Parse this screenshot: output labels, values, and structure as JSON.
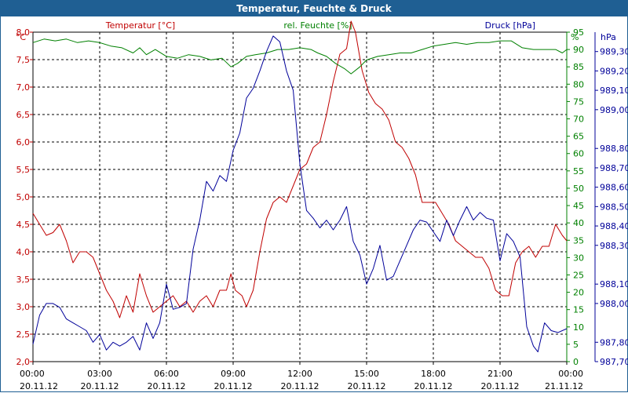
{
  "window_title": "Temperatur, Feuchte & Druck",
  "chart_data": {
    "type": "line",
    "title": "Temperatur, Feuchte & Druck",
    "x_tick_times": [
      "00:00",
      "03:00",
      "06:00",
      "09:00",
      "12:00",
      "15:00",
      "18:00",
      "21:00",
      "00:00"
    ],
    "x_tick_dates": [
      "20.11.12",
      "20.11.12",
      "20.11.12",
      "20.11.12",
      "20.11.12",
      "20.11.12",
      "20.11.12",
      "20.11.12",
      "21.11.12"
    ],
    "xlim_hours": [
      0,
      24
    ],
    "grid": true,
    "axes": {
      "temperature": {
        "label": "Temperatur [°C]",
        "unit": "°C",
        "ylim": [
          2.0,
          8.0
        ],
        "ticks": [
          "2,0",
          "2,5",
          "3,0",
          "3,5",
          "4,0",
          "4,5",
          "5,0",
          "5,5",
          "6,0",
          "6,5",
          "7,0",
          "7,5",
          "8,0"
        ]
      },
      "humidity": {
        "label": "rel. Feuchte [%]",
        "unit": "%",
        "ylim": [
          0,
          95
        ],
        "ticks": [
          "0",
          "5",
          "10",
          "15",
          "20",
          "25",
          "30",
          "35",
          "40",
          "45",
          "50",
          "55",
          "60",
          "65",
          "70",
          "75",
          "80",
          "85",
          "90",
          "95"
        ]
      },
      "pressure": {
        "label": "Druck [hPa]",
        "unit": "hPa",
        "ylim": [
          987.7,
          989.4
        ],
        "ticks": [
          "987,70",
          "987,80",
          "988,00",
          "988,10",
          "988,30",
          "988,40",
          "988,50",
          "988,60",
          "988,70",
          "988,80",
          "989,00",
          "989,10",
          "989,20",
          "989,30"
        ]
      }
    },
    "series": [
      {
        "name": "Temperatur",
        "axis": "temperature",
        "color": "#c00000",
        "points": [
          [
            0,
            4.7
          ],
          [
            0.3,
            4.5
          ],
          [
            0.6,
            4.3
          ],
          [
            0.9,
            4.35
          ],
          [
            1.2,
            4.5
          ],
          [
            1.5,
            4.2
          ],
          [
            1.8,
            3.8
          ],
          [
            2.1,
            4.0
          ],
          [
            2.4,
            4.0
          ],
          [
            2.7,
            3.9
          ],
          [
            3.0,
            3.6
          ],
          [
            3.3,
            3.3
          ],
          [
            3.6,
            3.1
          ],
          [
            3.9,
            2.8
          ],
          [
            4.2,
            3.2
          ],
          [
            4.5,
            2.9
          ],
          [
            4.8,
            3.6
          ],
          [
            5.1,
            3.2
          ],
          [
            5.4,
            2.9
          ],
          [
            5.7,
            3.0
          ],
          [
            6.0,
            3.1
          ],
          [
            6.3,
            3.2
          ],
          [
            6.6,
            3.0
          ],
          [
            6.9,
            3.1
          ],
          [
            7.2,
            2.9
          ],
          [
            7.5,
            3.1
          ],
          [
            7.8,
            3.2
          ],
          [
            8.1,
            3.0
          ],
          [
            8.4,
            3.3
          ],
          [
            8.7,
            3.3
          ],
          [
            8.9,
            3.6
          ],
          [
            9.1,
            3.3
          ],
          [
            9.4,
            3.2
          ],
          [
            9.6,
            3.0
          ],
          [
            9.9,
            3.3
          ],
          [
            10.2,
            4.0
          ],
          [
            10.5,
            4.6
          ],
          [
            10.8,
            4.9
          ],
          [
            11.1,
            5.0
          ],
          [
            11.4,
            4.9
          ],
          [
            11.7,
            5.2
          ],
          [
            12.0,
            5.5
          ],
          [
            12.3,
            5.6
          ],
          [
            12.6,
            5.9
          ],
          [
            12.9,
            6.0
          ],
          [
            13.2,
            6.5
          ],
          [
            13.5,
            7.1
          ],
          [
            13.8,
            7.6
          ],
          [
            14.1,
            7.7
          ],
          [
            14.3,
            8.2
          ],
          [
            14.5,
            8.0
          ],
          [
            14.8,
            7.3
          ],
          [
            15.1,
            6.9
          ],
          [
            15.4,
            6.7
          ],
          [
            15.7,
            6.6
          ],
          [
            16.0,
            6.4
          ],
          [
            16.3,
            6.0
          ],
          [
            16.6,
            5.9
          ],
          [
            16.9,
            5.7
          ],
          [
            17.2,
            5.4
          ],
          [
            17.5,
            4.9
          ],
          [
            17.8,
            4.9
          ],
          [
            18.1,
            4.9
          ],
          [
            18.4,
            4.7
          ],
          [
            18.7,
            4.5
          ],
          [
            19.0,
            4.2
          ],
          [
            19.3,
            4.1
          ],
          [
            19.6,
            4.0
          ],
          [
            19.9,
            3.9
          ],
          [
            20.2,
            3.9
          ],
          [
            20.5,
            3.7
          ],
          [
            20.8,
            3.3
          ],
          [
            21.1,
            3.2
          ],
          [
            21.4,
            3.2
          ],
          [
            21.7,
            3.8
          ],
          [
            22.0,
            4.0
          ],
          [
            22.3,
            4.1
          ],
          [
            22.6,
            3.9
          ],
          [
            22.9,
            4.1
          ],
          [
            23.2,
            4.1
          ],
          [
            23.5,
            4.5
          ],
          [
            23.8,
            4.3
          ],
          [
            24.0,
            4.2
          ]
        ]
      },
      {
        "name": "rel. Feuchte",
        "axis": "humidity",
        "color": "#008000",
        "points": [
          [
            0,
            92
          ],
          [
            0.5,
            93
          ],
          [
            1.0,
            92.5
          ],
          [
            1.5,
            93
          ],
          [
            2.0,
            92
          ],
          [
            2.5,
            92.5
          ],
          [
            3.0,
            92
          ],
          [
            3.5,
            91
          ],
          [
            4.0,
            90.5
          ],
          [
            4.5,
            89
          ],
          [
            4.8,
            90.5
          ],
          [
            5.1,
            88.5
          ],
          [
            5.5,
            90
          ],
          [
            6.0,
            88
          ],
          [
            6.5,
            87.5
          ],
          [
            7.0,
            88.5
          ],
          [
            7.5,
            88
          ],
          [
            8.0,
            87
          ],
          [
            8.5,
            87.5
          ],
          [
            8.9,
            85
          ],
          [
            9.2,
            86
          ],
          [
            9.6,
            88
          ],
          [
            10.0,
            88.5
          ],
          [
            10.5,
            89
          ],
          [
            11.0,
            90
          ],
          [
            11.5,
            90
          ],
          [
            12.0,
            90.5
          ],
          [
            12.5,
            90
          ],
          [
            12.8,
            89
          ],
          [
            13.2,
            88
          ],
          [
            13.6,
            86
          ],
          [
            14.0,
            84.5
          ],
          [
            14.3,
            83
          ],
          [
            14.7,
            85
          ],
          [
            15.0,
            87
          ],
          [
            15.5,
            88
          ],
          [
            16.0,
            88.5
          ],
          [
            16.5,
            89
          ],
          [
            17.0,
            89
          ],
          [
            17.5,
            90
          ],
          [
            18.0,
            91
          ],
          [
            18.5,
            91.5
          ],
          [
            19.0,
            92
          ],
          [
            19.5,
            91.5
          ],
          [
            20.0,
            92
          ],
          [
            20.5,
            92
          ],
          [
            21.0,
            92.5
          ],
          [
            21.5,
            92.5
          ],
          [
            22.0,
            90.5
          ],
          [
            22.5,
            90
          ],
          [
            23.0,
            90
          ],
          [
            23.5,
            90
          ],
          [
            23.8,
            89
          ],
          [
            24.0,
            90
          ]
        ]
      },
      {
        "name": "Druck",
        "axis": "pressure",
        "color": "#000099",
        "points": [
          [
            0,
            987.79
          ],
          [
            0.3,
            987.94
          ],
          [
            0.6,
            988.0
          ],
          [
            0.9,
            988.0
          ],
          [
            1.2,
            987.98
          ],
          [
            1.5,
            987.92
          ],
          [
            1.8,
            987.9
          ],
          [
            2.1,
            987.88
          ],
          [
            2.4,
            987.86
          ],
          [
            2.7,
            987.8
          ],
          [
            3.0,
            987.84
          ],
          [
            3.3,
            987.76
          ],
          [
            3.6,
            987.8
          ],
          [
            3.9,
            987.78
          ],
          [
            4.2,
            987.8
          ],
          [
            4.5,
            987.83
          ],
          [
            4.8,
            987.76
          ],
          [
            5.1,
            987.9
          ],
          [
            5.4,
            987.82
          ],
          [
            5.7,
            987.9
          ],
          [
            6.0,
            988.1
          ],
          [
            6.3,
            987.97
          ],
          [
            6.6,
            987.98
          ],
          [
            6.9,
            988.0
          ],
          [
            7.2,
            988.28
          ],
          [
            7.5,
            988.43
          ],
          [
            7.8,
            988.63
          ],
          [
            8.1,
            988.58
          ],
          [
            8.4,
            988.66
          ],
          [
            8.7,
            988.63
          ],
          [
            9.0,
            988.79
          ],
          [
            9.3,
            988.88
          ],
          [
            9.6,
            989.06
          ],
          [
            9.9,
            989.11
          ],
          [
            10.2,
            989.2
          ],
          [
            10.5,
            989.3
          ],
          [
            10.8,
            989.38
          ],
          [
            11.1,
            989.35
          ],
          [
            11.4,
            989.2
          ],
          [
            11.7,
            989.1
          ],
          [
            12.0,
            988.72
          ],
          [
            12.3,
            988.48
          ],
          [
            12.6,
            988.44
          ],
          [
            12.9,
            988.39
          ],
          [
            13.2,
            988.43
          ],
          [
            13.5,
            988.38
          ],
          [
            13.8,
            988.43
          ],
          [
            14.1,
            988.5
          ],
          [
            14.4,
            988.32
          ],
          [
            14.7,
            988.25
          ],
          [
            15.0,
            988.1
          ],
          [
            15.3,
            988.18
          ],
          [
            15.6,
            988.3
          ],
          [
            15.9,
            988.12
          ],
          [
            16.2,
            988.14
          ],
          [
            16.5,
            988.22
          ],
          [
            16.8,
            988.3
          ],
          [
            17.1,
            988.38
          ],
          [
            17.4,
            988.43
          ],
          [
            17.7,
            988.42
          ],
          [
            18.0,
            988.37
          ],
          [
            18.3,
            988.32
          ],
          [
            18.6,
            988.43
          ],
          [
            18.9,
            988.35
          ],
          [
            19.2,
            988.43
          ],
          [
            19.5,
            988.5
          ],
          [
            19.8,
            988.43
          ],
          [
            20.1,
            988.47
          ],
          [
            20.4,
            988.44
          ],
          [
            20.7,
            988.43
          ],
          [
            21.0,
            988.22
          ],
          [
            21.3,
            988.36
          ],
          [
            21.6,
            988.32
          ],
          [
            21.9,
            988.24
          ],
          [
            22.2,
            987.88
          ],
          [
            22.5,
            987.78
          ],
          [
            22.7,
            987.75
          ],
          [
            23.0,
            987.9
          ],
          [
            23.3,
            987.86
          ],
          [
            23.6,
            987.85
          ],
          [
            24.0,
            987.87
          ]
        ]
      }
    ]
  }
}
